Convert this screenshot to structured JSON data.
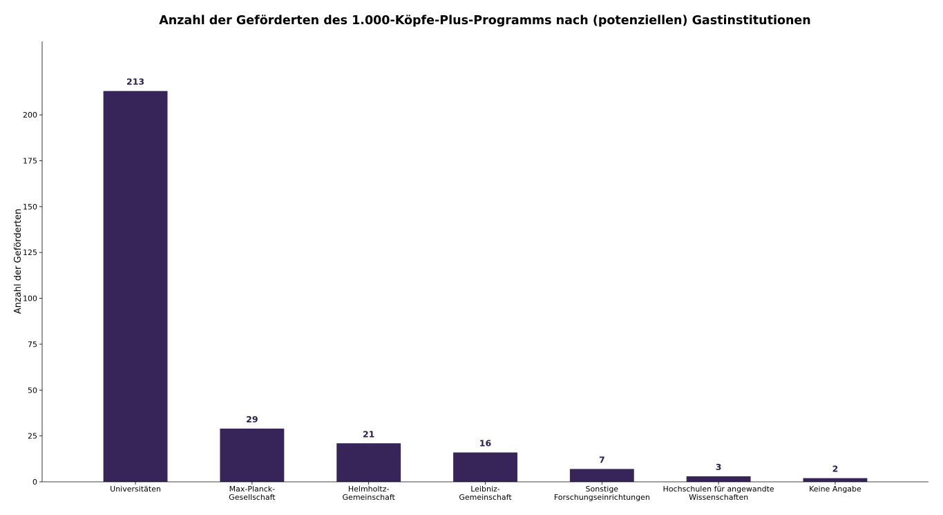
{
  "chart_data": {
    "type": "bar",
    "title": "Anzahl der Geförderten des 1.000-Köpfe-Plus-Programms nach (potenziellen) Gastinstitutionen",
    "xlabel": "",
    "ylabel": "Anzahl der Geförderten",
    "categories": [
      [
        "Universitäten"
      ],
      [
        "Max-Planck-",
        "Gesellschaft"
      ],
      [
        "Helmholtz-",
        "Gemeinschaft"
      ],
      [
        "Leibniz-",
        "Gemeinschaft"
      ],
      [
        "Sonstige",
        "Forschungseinrichtungen"
      ],
      [
        "Hochschulen für angewandte",
        "Wissenschaften"
      ],
      [
        "Keine Angabe"
      ]
    ],
    "values": [
      213,
      29,
      21,
      16,
      7,
      3,
      2
    ],
    "data_labels": [
      "213",
      "29",
      "21",
      "16",
      "7",
      "3",
      "2"
    ],
    "ylim": [
      0,
      240
    ],
    "yticks": [
      0,
      25,
      50,
      75,
      100,
      125,
      150,
      175,
      200
    ],
    "ytick_labels": [
      "0",
      "25",
      "50",
      "75",
      "100",
      "125",
      "150",
      "175",
      "200"
    ],
    "grid": false,
    "bar_color": "#372459",
    "label_color": "#2a1d4f"
  }
}
